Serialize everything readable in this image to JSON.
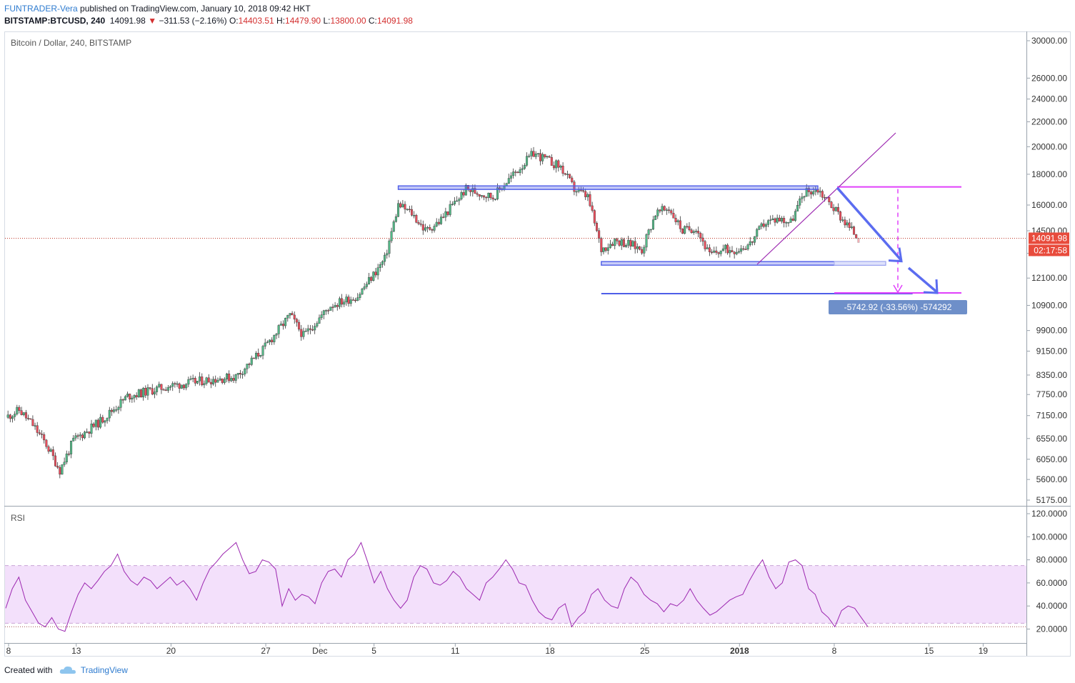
{
  "header": {
    "author": "FUNTRADER-Vera",
    "published": "published on TradingView.com, January 10, 2018 09:42 HKT",
    "symbol": "BITSTAMP:BTCUSD, 240",
    "last": "14091.98",
    "change": "−311.53 (−2.16%)",
    "o_label": "O:",
    "o_value": "14403.51",
    "h_label": "H:",
    "h_value": "14479.90",
    "l_label": "L:",
    "l_value": "13800.00",
    "c_label": "C:",
    "c_value": "14091.98"
  },
  "main_pane": {
    "title": "Bitcoin / Dollar, 240, BITSTAMP"
  },
  "rsi_pane": {
    "title": "RSI"
  },
  "badges": {
    "price": "14091.98",
    "countdown": "02:17:58",
    "measure": "-5742.92 (-33.56%) -574292"
  },
  "footer": {
    "created_with": "Created with",
    "brand": "TradingView"
  },
  "colors": {
    "up": "#53b987",
    "down": "#eb4d5c",
    "channel": "#4f5ee8",
    "magenta": "#e040fb",
    "trend": "#9c27b0",
    "rsi_line": "#9c27b0",
    "rsi_band": "#f3e0fb",
    "price_badge": "#e84b3c",
    "measure_badge": "#6e8fc9"
  },
  "chart_data": [
    {
      "type": "candlestick",
      "title": "Bitcoin / Dollar, 240, BITSTAMP",
      "yscale": "log",
      "y_ticks": [
        30000,
        26000,
        24000,
        22000,
        20000,
        18000,
        16000,
        14500,
        13300,
        12100,
        10900,
        9900,
        9150,
        8350,
        7750,
        7150,
        6550,
        6050,
        5600,
        5175
      ],
      "y_tick_labels": [
        "30000.00",
        "26000.00",
        "24000.00",
        "22000.00",
        "20000.00",
        "18000.00",
        "16000.00",
        "14500.00",
        "13300.00",
        "12100.00",
        "10900.00",
        "9900.00",
        "9150.00",
        "8350.00",
        "7750.00",
        "7150.00",
        "6550.00",
        "6050.00",
        "5600.00",
        "5175.00"
      ],
      "x_tick_labels": [
        "8",
        "13",
        "20",
        "27",
        "Dec",
        "5",
        "11",
        "18",
        "25",
        "2018",
        "8",
        "15",
        "19"
      ],
      "ylim": [
        5000,
        31500
      ],
      "last_price": 14091.98,
      "close_path": [
        {
          "date": "2017-11-08",
          "close": 7100
        },
        {
          "date": "2017-11-09",
          "close": 7300
        },
        {
          "date": "2017-11-10",
          "close": 6900
        },
        {
          "date": "2017-11-11",
          "close": 6400
        },
        {
          "date": "2017-11-12",
          "close": 5800
        },
        {
          "date": "2017-11-13",
          "close": 6500
        },
        {
          "date": "2017-11-15",
          "close": 7000
        },
        {
          "date": "2017-11-17",
          "close": 7700
        },
        {
          "date": "2017-11-20",
          "close": 8000
        },
        {
          "date": "2017-11-23",
          "close": 8200
        },
        {
          "date": "2017-11-25",
          "close": 8300
        },
        {
          "date": "2017-11-27",
          "close": 9200
        },
        {
          "date": "2017-11-29",
          "close": 10500
        },
        {
          "date": "2017-11-30",
          "close": 9700
        },
        {
          "date": "2017-12-02",
          "close": 10900
        },
        {
          "date": "2017-12-04",
          "close": 11300
        },
        {
          "date": "2017-12-06",
          "close": 13000
        },
        {
          "date": "2017-12-07",
          "close": 16000
        },
        {
          "date": "2017-12-08",
          "close": 15500
        },
        {
          "date": "2017-12-09",
          "close": 14500
        },
        {
          "date": "2017-12-10",
          "close": 15000
        },
        {
          "date": "2017-12-12",
          "close": 17000
        },
        {
          "date": "2017-12-14",
          "close": 16500
        },
        {
          "date": "2017-12-15",
          "close": 17500
        },
        {
          "date": "2017-12-17",
          "close": 19500
        },
        {
          "date": "2017-12-18",
          "close": 19000
        },
        {
          "date": "2017-12-19",
          "close": 18500
        },
        {
          "date": "2017-12-20",
          "close": 17000
        },
        {
          "date": "2017-12-21",
          "close": 16500
        },
        {
          "date": "2017-12-22",
          "close": 13500
        },
        {
          "date": "2017-12-23",
          "close": 14000
        },
        {
          "date": "2017-12-24",
          "close": 13800
        },
        {
          "date": "2017-12-25",
          "close": 13500
        },
        {
          "date": "2017-12-26",
          "close": 15500
        },
        {
          "date": "2017-12-27",
          "close": 15800
        },
        {
          "date": "2017-12-28",
          "close": 14500
        },
        {
          "date": "2017-12-29",
          "close": 14700
        },
        {
          "date": "2017-12-30",
          "close": 13200
        },
        {
          "date": "2017-12-31",
          "close": 13500
        },
        {
          "date": "2018-01-01",
          "close": 13500
        },
        {
          "date": "2018-01-02",
          "close": 13800
        },
        {
          "date": "2018-01-03",
          "close": 14900
        },
        {
          "date": "2018-01-04",
          "close": 15200
        },
        {
          "date": "2018-01-05",
          "close": 15000
        },
        {
          "date": "2018-01-06",
          "close": 16800
        },
        {
          "date": "2018-01-07",
          "close": 17000
        },
        {
          "date": "2018-01-08",
          "close": 16000
        },
        {
          "date": "2018-01-09",
          "close": 15000
        },
        {
          "date": "2018-01-10",
          "close": 14091.98
        }
      ],
      "annotations": [
        {
          "type": "horizontal-zone",
          "from_date": "2017-12-07",
          "to_date": "2018-01-07",
          "y": 17100
        },
        {
          "type": "horizontal-zone",
          "from_date": "2017-12-22",
          "to_date": "2018-01-12",
          "y": 12800
        },
        {
          "type": "horizontal-line",
          "from_date": "2017-12-22",
          "to_date": "2018-01-14",
          "y": 11400
        },
        {
          "type": "measure",
          "from_date": "2018-01-07",
          "to_date": "2018-01-12",
          "from_y": 17100,
          "to_y": 11400,
          "label": "-5742.92 (-33.56%) -574292"
        }
      ]
    },
    {
      "type": "line",
      "title": "RSI",
      "y_ticks": [
        20,
        40,
        60,
        80,
        100,
        120
      ],
      "y_tick_labels": [
        "20.0000",
        "40.0000",
        "60.0000",
        "80.0000",
        "100.0000",
        "120.0000"
      ],
      "band": [
        25,
        75
      ],
      "ylim": [
        12,
        125
      ],
      "series": [
        {
          "values": [
            38,
            55,
            65,
            45,
            35,
            25,
            22,
            30,
            20,
            18,
            35,
            50,
            60,
            55,
            62,
            70,
            75,
            85,
            70,
            62,
            58,
            65,
            62,
            55,
            60,
            65,
            58,
            62,
            55,
            45,
            60,
            72,
            78,
            85,
            90,
            95,
            80,
            68,
            70,
            80,
            78,
            72,
            40,
            55,
            45,
            50,
            48,
            42,
            60,
            70,
            72,
            65,
            80,
            85,
            95,
            78,
            60,
            70,
            55,
            45,
            38,
            45,
            65,
            75,
            72,
            60,
            58,
            62,
            70,
            65,
            55,
            50,
            45,
            60,
            65,
            72,
            80,
            72,
            60,
            58,
            45,
            35,
            30,
            28,
            38,
            42,
            22,
            30,
            35,
            50,
            55,
            45,
            40,
            38,
            55,
            65,
            60,
            50,
            45,
            42,
            35,
            42,
            40,
            45,
            55,
            45,
            38,
            32,
            35,
            40,
            45,
            48,
            50,
            62,
            72,
            80,
            65,
            55,
            60,
            78,
            80,
            75,
            55,
            50,
            35,
            30,
            22,
            36,
            40,
            38,
            30,
            22
          ]
        }
      ]
    }
  ]
}
